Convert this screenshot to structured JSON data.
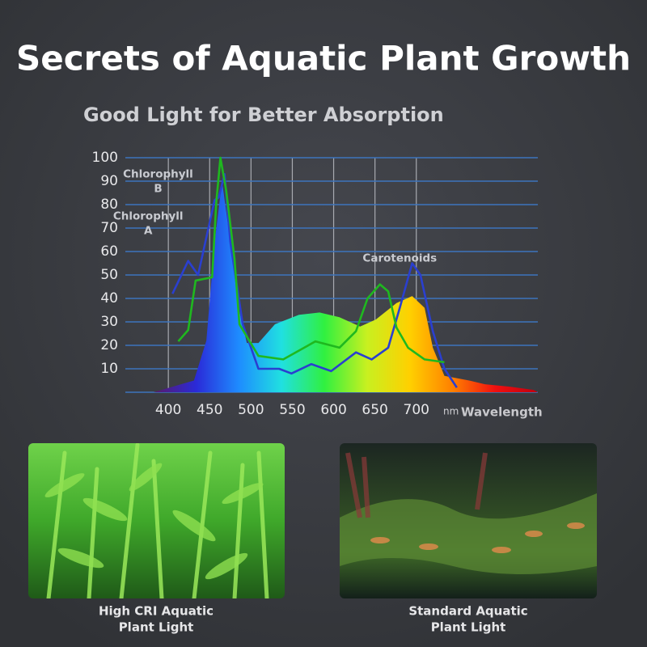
{
  "title": "Secrets of Aquatic Plant Growth",
  "chart_data": {
    "type": "line",
    "title": "Good Light for Better Absorption",
    "xlabel_unit": "nm",
    "xlabel": "Wavelength",
    "xlim": [
      348,
      847
    ],
    "ylim": [
      0,
      100
    ],
    "xticks": [
      400,
      450,
      500,
      550,
      600,
      650,
      700
    ],
    "yticks": [
      10,
      20,
      30,
      40,
      50,
      60,
      70,
      80,
      90,
      100
    ],
    "grid": true,
    "area": {
      "fill_gradient": [
        "#5a1a6a",
        "#2a2ad8",
        "#1e8cff",
        "#20e0e0",
        "#30f040",
        "#c8f020",
        "#ffd000",
        "#ff8000",
        "#f01010",
        "#c00010"
      ],
      "x": [
        382,
        431,
        446,
        456,
        465,
        475,
        485,
        495,
        509,
        529,
        558,
        583,
        607,
        632,
        651,
        676,
        695,
        710,
        720,
        734,
        764,
        783,
        812,
        842,
        847
      ],
      "values": [
        0,
        5,
        22,
        64,
        90,
        64,
        36,
        21,
        21,
        29,
        33,
        34,
        32,
        28,
        31,
        38,
        41,
        36,
        19,
        7,
        5,
        3.4,
        2.4,
        1,
        0
      ]
    },
    "series": [
      {
        "color": "#2a3fd0",
        "x": [
          405,
          424,
          436,
          456,
          461,
          468,
          475,
          490,
          509,
          534,
          549,
          573,
          597,
          627,
          646,
          666,
          680,
          695,
          705,
          720,
          734,
          749
        ],
        "values": [
          42,
          56,
          50,
          82,
          83,
          93,
          64,
          29,
          10,
          10,
          8,
          12,
          9,
          17,
          14,
          19,
          36,
          55,
          50,
          26,
          10,
          2
        ]
      },
      {
        "color": "#1fb81f",
        "x": [
          412,
          424,
          433,
          453,
          458,
          463,
          470,
          480,
          486,
          509,
          539,
          578,
          607,
          627,
          641,
          656,
          666,
          676,
          690,
          710,
          734
        ],
        "values": [
          21.7,
          26.5,
          47.6,
          49,
          81,
          100,
          86,
          57,
          29,
          15.5,
          14,
          21.7,
          19,
          26,
          40,
          46,
          43,
          27.6,
          19,
          14,
          12.8
        ]
      }
    ],
    "annotations": [
      {
        "lines": [
          "Chlorophyll",
          "B"
        ],
        "x": 430,
        "y": 93
      },
      {
        "lines": [
          "Chlorophyll",
          "A"
        ],
        "x": 418,
        "y": 75
      },
      {
        "lines": [
          "Carotenoids"
        ],
        "x": 680,
        "y": 57
      }
    ]
  },
  "panels": [
    {
      "caption": [
        "High CRI Aquatic",
        "Plant Light"
      ]
    },
    {
      "caption": [
        "Standard Aquatic",
        "Plant Light"
      ]
    }
  ]
}
